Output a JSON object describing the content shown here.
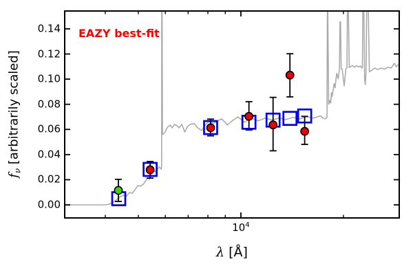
{
  "figure": {
    "annotation": {
      "label": "EAZY best-fit",
      "color": "#ff0000"
    },
    "axes": {
      "xlabel": {
        "symbol": "λ",
        "unit": " [Å]"
      },
      "ylabel": {
        "symbol": "f",
        "subscript": "ν",
        "text": " [arbitrarily scaled]"
      }
    }
  },
  "chart_data": {
    "type": "line",
    "title": "EAZY best-fit",
    "xlabel": "lambda [Angstrom]",
    "ylabel": "f_nu [arbitrarily scaled]",
    "x_scale": "log",
    "xlim": [
      3040,
      29160
    ],
    "ylim": [
      -0.0104,
      0.1542
    ],
    "grid": false,
    "x_major_ticks": [
      {
        "value": 10000,
        "mantissa": "10",
        "exponent": "4"
      }
    ],
    "x_minor_ticks": [
      4000,
      5000,
      6000,
      7000,
      8000,
      9000,
      20000
    ],
    "y_ticks": [
      {
        "value": 0.0,
        "label": "0.00"
      },
      {
        "value": 0.02,
        "label": "0.02"
      },
      {
        "value": 0.04,
        "label": "0.04"
      },
      {
        "value": 0.06,
        "label": "0.06"
      },
      {
        "value": 0.08,
        "label": "0.08"
      },
      {
        "value": 0.1,
        "label": "0.10"
      },
      {
        "value": 0.12,
        "label": "0.12"
      },
      {
        "value": 0.14,
        "label": "0.14"
      }
    ],
    "series": [
      {
        "name": "model-spectrum",
        "type": "line",
        "color": "#aaaaaa",
        "linewidth": 1.6,
        "points": [
          [
            3040,
            0.0
          ],
          [
            3500,
            0.0
          ],
          [
            4000,
            0.0
          ],
          [
            4090,
            0.0005
          ],
          [
            4190,
            0.0016
          ],
          [
            4330,
            0.0044
          ],
          [
            4430,
            0.0066
          ],
          [
            4540,
            0.0077
          ],
          [
            4620,
            0.0071
          ],
          [
            4710,
            0.0098
          ],
          [
            4800,
            0.0093
          ],
          [
            4890,
            0.012
          ],
          [
            4980,
            0.0153
          ],
          [
            5070,
            0.0148
          ],
          [
            5170,
            0.0164
          ],
          [
            5270,
            0.0197
          ],
          [
            5340,
            0.0213
          ],
          [
            5390,
            0.0202
          ],
          [
            5470,
            0.0257
          ],
          [
            5540,
            0.0279
          ],
          [
            5600,
            0.0263
          ],
          [
            5680,
            0.0284
          ],
          [
            5760,
            0.0301
          ],
          [
            5840,
            0.0284
          ],
          [
            5852,
            0.031
          ],
          [
            5858,
            0.1542
          ],
          [
            5872,
            0.1542
          ],
          [
            5886,
            0.056
          ],
          [
            5980,
            0.0574
          ],
          [
            6090,
            0.0618
          ],
          [
            6200,
            0.0634
          ],
          [
            6290,
            0.0613
          ],
          [
            6380,
            0.064
          ],
          [
            6500,
            0.0629
          ],
          [
            6590,
            0.0613
          ],
          [
            6710,
            0.064
          ],
          [
            6840,
            0.058
          ],
          [
            6970,
            0.0622
          ],
          [
            7100,
            0.064
          ],
          [
            7300,
            0.0646
          ],
          [
            7470,
            0.0612
          ],
          [
            7680,
            0.0592
          ],
          [
            7850,
            0.0632
          ],
          [
            8030,
            0.0662
          ],
          [
            8320,
            0.0648
          ],
          [
            8560,
            0.067
          ],
          [
            8790,
            0.0684
          ],
          [
            9130,
            0.0636
          ],
          [
            9470,
            0.0672
          ],
          [
            9800,
            0.07
          ],
          [
            10240,
            0.0658
          ],
          [
            10730,
            0.069
          ],
          [
            11240,
            0.0668
          ],
          [
            11780,
            0.069
          ],
          [
            12340,
            0.0674
          ],
          [
            12930,
            0.069
          ],
          [
            13550,
            0.0678
          ],
          [
            14200,
            0.0696
          ],
          [
            14880,
            0.0684
          ],
          [
            15590,
            0.0702
          ],
          [
            16340,
            0.069
          ],
          [
            17120,
            0.0708
          ],
          [
            17520,
            0.0686
          ],
          [
            17780,
            0.0686
          ],
          [
            17900,
            0.07
          ],
          [
            17945,
            0.1542
          ],
          [
            17995,
            0.1542
          ],
          [
            18100,
            0.08
          ],
          [
            18270,
            0.0832
          ],
          [
            18350,
            0.081
          ],
          [
            18440,
            0.0892
          ],
          [
            18530,
            0.0862
          ],
          [
            18780,
            0.0964
          ],
          [
            18900,
            0.0932
          ],
          [
            19100,
            0.1046
          ],
          [
            19300,
            0.1002
          ],
          [
            19470,
            0.1082
          ],
          [
            19540,
            0.1456
          ],
          [
            19610,
            0.1456
          ],
          [
            19700,
            0.1083
          ],
          [
            19840,
            0.108
          ],
          [
            20100,
            0.0946
          ],
          [
            20330,
            0.1082
          ],
          [
            20480,
            0.109
          ],
          [
            20540,
            0.1542
          ],
          [
            20680,
            0.1542
          ],
          [
            20800,
            0.1092
          ],
          [
            20960,
            0.1098
          ],
          [
            21250,
            0.1108
          ],
          [
            21550,
            0.1094
          ],
          [
            21850,
            0.1108
          ],
          [
            22150,
            0.1098
          ],
          [
            22450,
            0.1104
          ],
          [
            22660,
            0.1088
          ],
          [
            22740,
            0.1096
          ],
          [
            22800,
            0.1542
          ],
          [
            22960,
            0.1542
          ],
          [
            23080,
            0.1002
          ],
          [
            23180,
            0.0957
          ],
          [
            23290,
            0.1048
          ],
          [
            23400,
            0.1542
          ],
          [
            23660,
            0.1542
          ],
          [
            23830,
            0.1058
          ],
          [
            24140,
            0.1068
          ],
          [
            24690,
            0.1088
          ],
          [
            25240,
            0.1076
          ],
          [
            25820,
            0.1088
          ],
          [
            26400,
            0.108
          ],
          [
            27000,
            0.1094
          ],
          [
            27600,
            0.1088
          ],
          [
            28230,
            0.1126
          ],
          [
            28610,
            0.1098
          ],
          [
            29000,
            0.1118
          ]
        ]
      },
      {
        "name": "model-photometry",
        "type": "scatter",
        "marker": "open-square",
        "color": "#0000ee",
        "points": [
          [
            4380,
            0.0049
          ],
          [
            5415,
            0.0282
          ],
          [
            8150,
            0.0615
          ],
          [
            10560,
            0.0657
          ],
          [
            12430,
            0.0674
          ],
          [
            13930,
            0.0688
          ],
          [
            15390,
            0.0707
          ]
        ]
      },
      {
        "name": "observed-photometry",
        "type": "scatter",
        "marker": "circle",
        "color": "#ee0000",
        "edge_color": "#000000",
        "points": [
          {
            "x": 5415,
            "y": 0.0279,
            "err_up": 0.0066,
            "err_dn": 0.0066
          },
          {
            "x": 8150,
            "y": 0.0613,
            "err_up": 0.0069,
            "err_dn": 0.0064
          },
          {
            "x": 10560,
            "y": 0.0704,
            "err_up": 0.0117,
            "err_dn": 0.0108
          },
          {
            "x": 12430,
            "y": 0.0636,
            "err_up": 0.0219,
            "err_dn": 0.0206
          },
          {
            "x": 13930,
            "y": 0.1032,
            "err_up": 0.017,
            "err_dn": 0.0173
          },
          {
            "x": 15390,
            "y": 0.0585,
            "err_up": 0.0119,
            "err_dn": 0.0104
          }
        ]
      },
      {
        "name": "observed-photometry-green",
        "type": "scatter",
        "marker": "circle",
        "color": "#3cd60e",
        "edge_color": "#000000",
        "points": [
          {
            "x": 4370,
            "y": 0.0115,
            "err_up": 0.0088,
            "err_dn": 0.0088
          }
        ]
      }
    ]
  }
}
